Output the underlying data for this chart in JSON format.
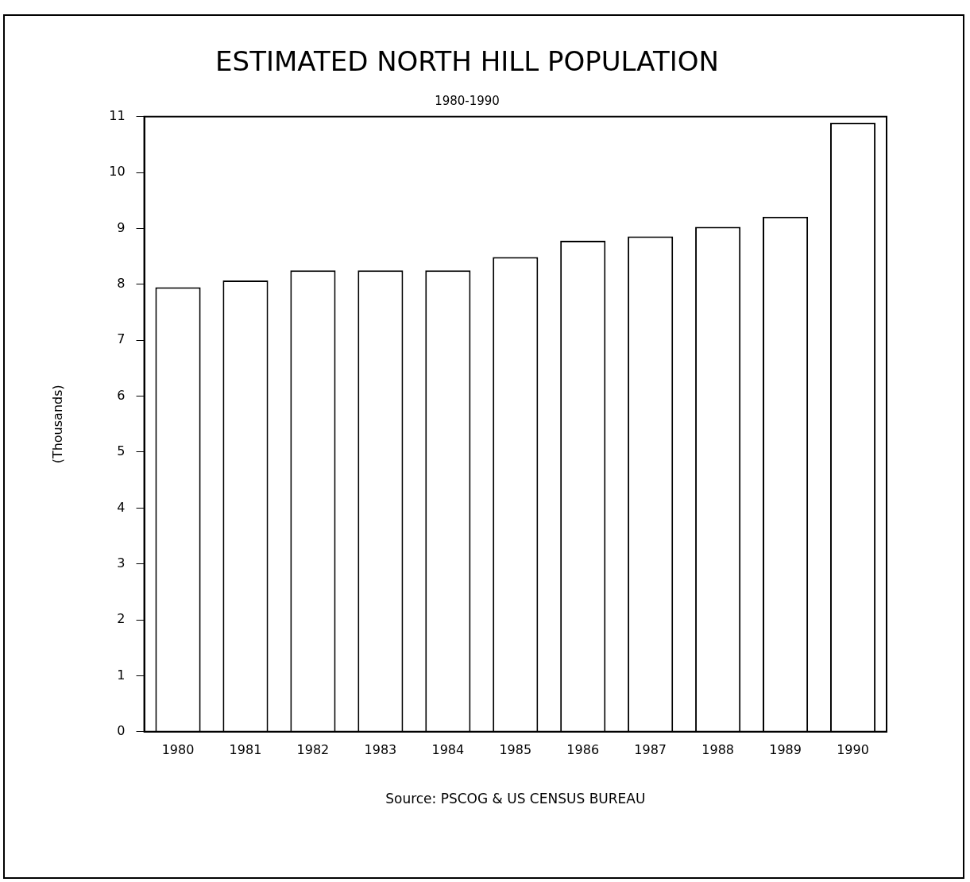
{
  "chart_data": {
    "type": "bar",
    "title": "ESTIMATED NORTH HILL POPULATION",
    "subtitle": "1980-1990",
    "ylabel": "(Thousands)",
    "categories": [
      "1980",
      "1981",
      "1982",
      "1983",
      "1984",
      "1985",
      "1986",
      "1987",
      "1988",
      "1989",
      "1990"
    ],
    "values": [
      7.95,
      8.07,
      8.25,
      8.25,
      8.25,
      8.49,
      8.78,
      8.86,
      9.03,
      9.21,
      10.89
    ],
    "color": "#ffffff",
    "ylim": [
      0,
      11
    ],
    "yticks": [
      0,
      1,
      2,
      3,
      4,
      5,
      6,
      7,
      8,
      9,
      10,
      11
    ],
    "grid": false,
    "legend": false,
    "annotations": [
      "Source: PSCOG & US CENSUS BUREAU"
    ]
  }
}
